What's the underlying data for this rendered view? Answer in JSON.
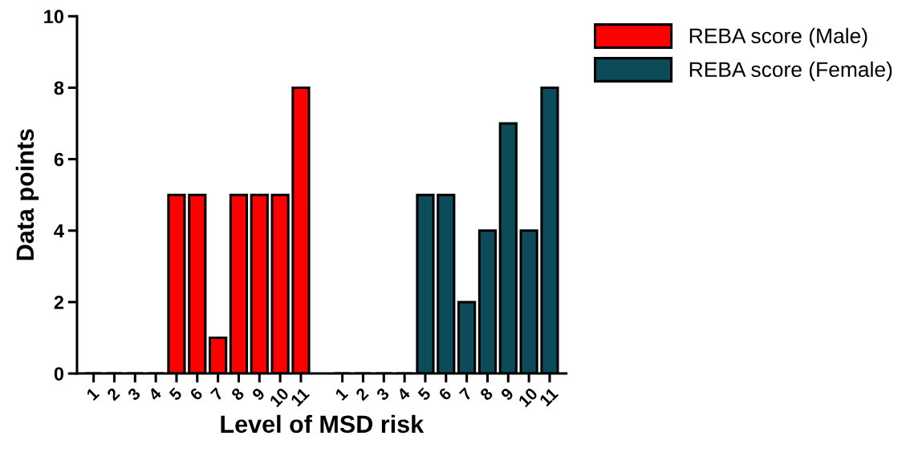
{
  "chart_data": {
    "type": "bar",
    "xlabel": "Level of MSD risk",
    "ylabel": "Data points",
    "categories": [
      "1",
      "2",
      "3",
      "4",
      "5",
      "6",
      "7",
      "8",
      "9",
      "10",
      "11",
      null,
      "1",
      "2",
      "3",
      "4",
      "5",
      "6",
      "7",
      "8",
      "9",
      "10",
      "11"
    ],
    "series": [
      {
        "name": "REBA score (Male)",
        "color": "#ff0000",
        "values": [
          0,
          0,
          0,
          0,
          5,
          5,
          1,
          5,
          5,
          5,
          8,
          null,
          null,
          null,
          null,
          null,
          null,
          null,
          null,
          null,
          null,
          null,
          null
        ]
      },
      {
        "name": "REBA score (Female)",
        "color": "#0b4b5a",
        "values": [
          null,
          null,
          null,
          null,
          null,
          null,
          null,
          null,
          null,
          null,
          null,
          null,
          0,
          0,
          0,
          0,
          5,
          5,
          2,
          4,
          7,
          4,
          8
        ]
      }
    ],
    "ylim": [
      0,
      10
    ],
    "yticks": [
      0,
      2,
      4,
      6,
      8,
      10
    ],
    "grid": false,
    "legend": "top right"
  }
}
